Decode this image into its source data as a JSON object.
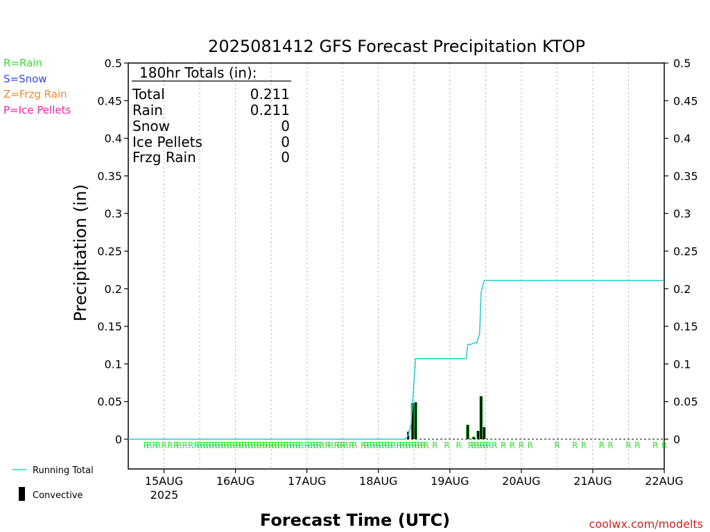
{
  "chart_data": {
    "type": "bar",
    "title": "2025081412 GFS Forecast Precipitation KTOP",
    "xlabel": "Forecast Time (UTC)",
    "ylabel": "Precipitation (in)",
    "ylim": [
      0,
      0.5
    ],
    "y_ticks": [
      "0",
      "0.05",
      "0.1",
      "0.15",
      "0.2",
      "0.25",
      "0.3",
      "0.35",
      "0.4",
      "0.45",
      "0.5"
    ],
    "x_ticks": [
      {
        "label": "15AUG",
        "hour": 12
      },
      {
        "label": "16AUG",
        "hour": 36
      },
      {
        "label": "17AUG",
        "hour": 60
      },
      {
        "label": "18AUG",
        "hour": 84
      },
      {
        "label": "19AUG",
        "hour": 108
      },
      {
        "label": "20AUG",
        "hour": 132
      },
      {
        "label": "21AUG",
        "hour": 156
      },
      {
        "label": "22AUG",
        "hour": 180
      }
    ],
    "year_label": "2025",
    "grid": true,
    "legend_types": [
      {
        "text": "R=Rain",
        "color": "#33dd33"
      },
      {
        "text": "S=Snow",
        "color": "#3344ee"
      },
      {
        "text": "Z=Frzg Rain",
        "color": "#ee8833"
      },
      {
        "text": "P=Ice Pellets",
        "color": "#ee22aa"
      }
    ],
    "legend_running": "Running Total",
    "legend_convective": "Convective",
    "totals": {
      "header": "180hr Totals (in):",
      "rows": [
        {
          "label": "Total",
          "value": "0.211"
        },
        {
          "label": "Rain",
          "value": "0.211"
        },
        {
          "label": "Snow",
          "value": "0"
        },
        {
          "label": "Ice Pellets",
          "value": "0"
        },
        {
          "label": "Frzg Rain",
          "value": "0"
        }
      ]
    },
    "series": [
      {
        "name": "Running Total",
        "color": "#22cccc",
        "points": [
          [
            0,
            0
          ],
          [
            93,
            0
          ],
          [
            94,
            0.005
          ],
          [
            95,
            0.02
          ],
          [
            95.5,
            0.05
          ],
          [
            96,
            0.08
          ],
          [
            96.5,
            0.107
          ],
          [
            98,
            0.107
          ],
          [
            112,
            0.107
          ],
          [
            113.5,
            0.107
          ],
          [
            114,
            0.126
          ],
          [
            115,
            0.126
          ],
          [
            116,
            0.128
          ],
          [
            117,
            0.128
          ],
          [
            118,
            0.14
          ],
          [
            118.5,
            0.195
          ],
          [
            119.5,
            0.211
          ],
          [
            126,
            0.211
          ],
          [
            180,
            0.211
          ]
        ]
      },
      {
        "name": "Convective",
        "color": "#000000",
        "bars": [
          {
            "hour": 94,
            "value": 0.01
          },
          {
            "hour": 95.5,
            "value": 0.048
          },
          {
            "hour": 96.5,
            "value": 0.049
          },
          {
            "hour": 114,
            "value": 0.019
          },
          {
            "hour": 116,
            "value": 0.003
          },
          {
            "hour": 117.5,
            "value": 0.011
          },
          {
            "hour": 118.5,
            "value": 0.057
          },
          {
            "hour": 119.5,
            "value": 0.016
          }
        ]
      },
      {
        "name": "Rain",
        "color": "#33dd33",
        "bars": [
          {
            "hour": 95.5,
            "value": 0.048
          },
          {
            "hour": 96.5,
            "value": 0.049
          },
          {
            "hour": 114,
            "value": 0.019
          },
          {
            "hour": 116,
            "value": 0.003
          },
          {
            "hour": 117.5,
            "value": 0.011
          },
          {
            "hour": 118.5,
            "value": 0.057
          },
          {
            "hour": 119.5,
            "value": 0.016
          }
        ]
      }
    ],
    "ptype_marker": "R",
    "ptype_color": "#33dd33",
    "ptype_hours": [
      6,
      7,
      9,
      10,
      12,
      14,
      16,
      17,
      19,
      21,
      23,
      24,
      25,
      26,
      27,
      28,
      29,
      30,
      31,
      32,
      33,
      34,
      35,
      36,
      37,
      38,
      39,
      40,
      41,
      42,
      43,
      44,
      45,
      46,
      47,
      48,
      49,
      50,
      51,
      52,
      53,
      54,
      55,
      56,
      57,
      58,
      60,
      61,
      62,
      63,
      64,
      65,
      67,
      68,
      70,
      71,
      72,
      73,
      75,
      76,
      79,
      80,
      81,
      82,
      83,
      84,
      85,
      86,
      87,
      88,
      89,
      91,
      92,
      93,
      94,
      95,
      96,
      97,
      98,
      99,
      100,
      103,
      107,
      111,
      115,
      116,
      117,
      118,
      119,
      120,
      121,
      123,
      126,
      129,
      132,
      135,
      144,
      150,
      153,
      159,
      162,
      168,
      171,
      177,
      180
    ]
  },
  "credit": "coolwx.com/modelts"
}
